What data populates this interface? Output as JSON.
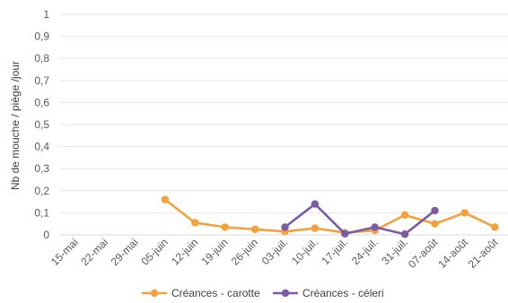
{
  "chart_data": {
    "type": "line",
    "title": "",
    "ylabel": "Nb de mouche / piège /jour",
    "xlabel": "",
    "ylim": [
      0,
      1
    ],
    "ytick_step": 0.1,
    "ytick_labels": [
      "0",
      "0,1",
      "0,2",
      "0,3",
      "0,4",
      "0,5",
      "0,6",
      "0,7",
      "0,8",
      "0,9",
      "1"
    ],
    "categories": [
      "15-mai",
      "22-mai",
      "29-mai",
      "05-juin",
      "12-juin",
      "19-juin",
      "26-juin",
      "03-juil.",
      "10-juil.",
      "17-juil.",
      "24-juil.",
      "31-juil.",
      "07-août",
      "14-août",
      "21-août"
    ],
    "grid": true,
    "legend_position": "bottom",
    "series": [
      {
        "name": "Créances - carotte",
        "color": "#f4a13b",
        "values": [
          null,
          null,
          null,
          0.16,
          0.055,
          0.035,
          0.025,
          0.015,
          0.03,
          0.01,
          0.02,
          0.09,
          0.05,
          0.1,
          0.035
        ]
      },
      {
        "name": "Créances - céleri",
        "color": "#7b5aa6",
        "values": [
          null,
          null,
          null,
          null,
          null,
          null,
          null,
          0.035,
          0.14,
          0.005,
          0.035,
          0.003,
          0.11,
          null,
          null
        ]
      }
    ]
  }
}
